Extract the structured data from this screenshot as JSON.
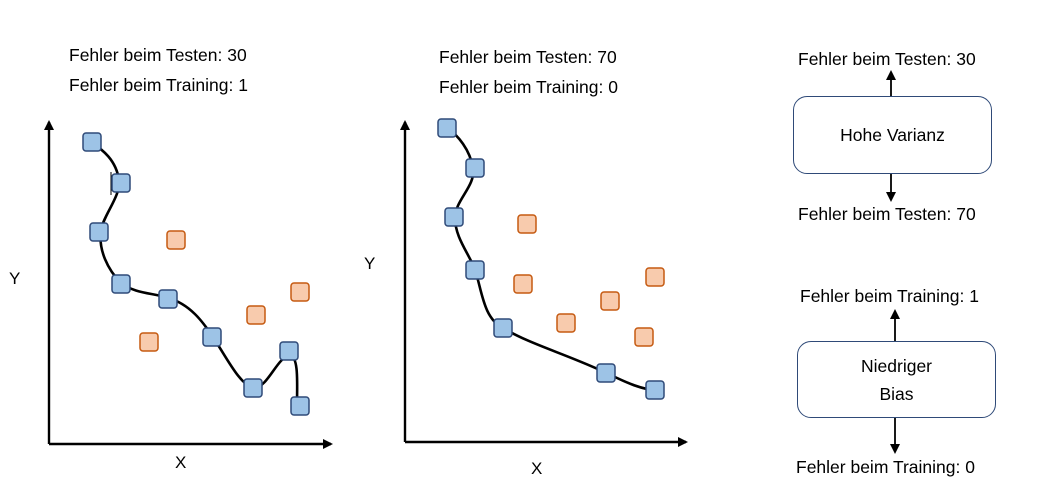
{
  "panel1": {
    "test_error": "Fehler beim Testen: 30",
    "train_error": "Fehler beim Training: 1",
    "x_label": "X",
    "y_label": "Y"
  },
  "panel2": {
    "test_error": "Fehler beim Testen: 70",
    "train_error": "Fehler beim Training: 0",
    "x_label": "X",
    "y_label": "Y"
  },
  "variance_block": {
    "top_label": "Fehler beim Testen: 30",
    "box_label": "Hohe Varianz",
    "bottom_label": "Fehler beim Testen: 70"
  },
  "bias_block": {
    "top_label": "Fehler beim Training: 1",
    "box_label_line1": "Niedriger",
    "box_label_line2": "Bias",
    "bottom_label": "Fehler beim Training: 0"
  },
  "colors": {
    "training_point_fill": "#9dc3e6",
    "training_point_stroke": "#2f4a78",
    "test_point_fill": "#f8cbad",
    "test_point_stroke": "#c55a11",
    "curve": "#000000",
    "axis": "#000000"
  }
}
